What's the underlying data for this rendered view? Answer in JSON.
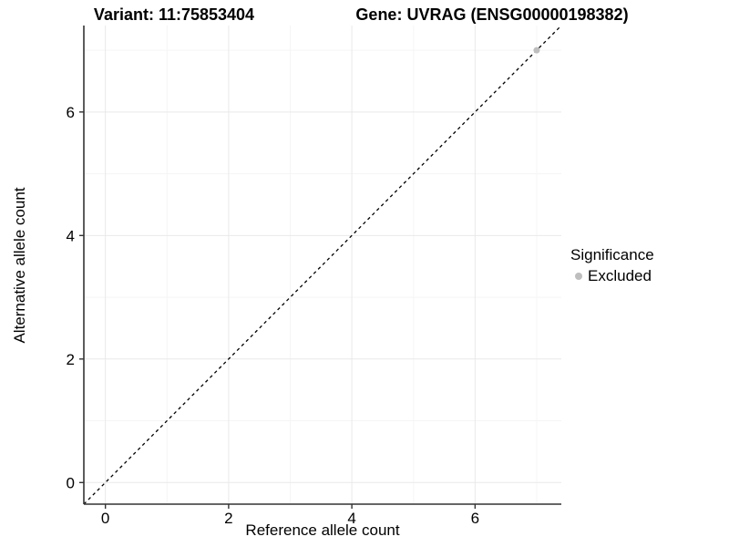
{
  "titles": {
    "left": "Variant: 11:75853404",
    "right": "Gene: UVRAG (ENSG00000198382)"
  },
  "axes": {
    "x": {
      "label": "Reference allele count"
    },
    "y": {
      "label": "Alternative allele count"
    }
  },
  "legend": {
    "title": "Significance",
    "items": [
      {
        "label": "Excluded",
        "color": "#bebebe"
      }
    ]
  },
  "chart_data": {
    "type": "scatter",
    "title": "Variant: 11:75853404 — Gene: UVRAG (ENSG00000198382)",
    "xlabel": "Reference allele count",
    "ylabel": "Alternative allele count",
    "xlim": [
      -0.35,
      7.4
    ],
    "ylim": [
      -0.35,
      7.4
    ],
    "x_ticks": [
      0,
      2,
      4,
      6
    ],
    "y_ticks": [
      0,
      2,
      4,
      6
    ],
    "x_minor_breaks": [
      1,
      3,
      5,
      7
    ],
    "y_minor_breaks": [
      1,
      3,
      5,
      7
    ],
    "grid": true,
    "legend_position": "right",
    "series": [
      {
        "name": "Excluded",
        "color": "#bebebe",
        "points": [
          [
            7,
            7
          ]
        ]
      }
    ],
    "reference_line": {
      "kind": "identity",
      "slope": 1,
      "intercept": 0,
      "style": "dashed",
      "color": "#000000"
    }
  },
  "colors": {
    "grid_major": "#e9e9e9",
    "grid_minor": "#f5f5f5",
    "axis_line": "#333333",
    "tick_text": "#000000",
    "excluded_point": "#bebebe"
  }
}
